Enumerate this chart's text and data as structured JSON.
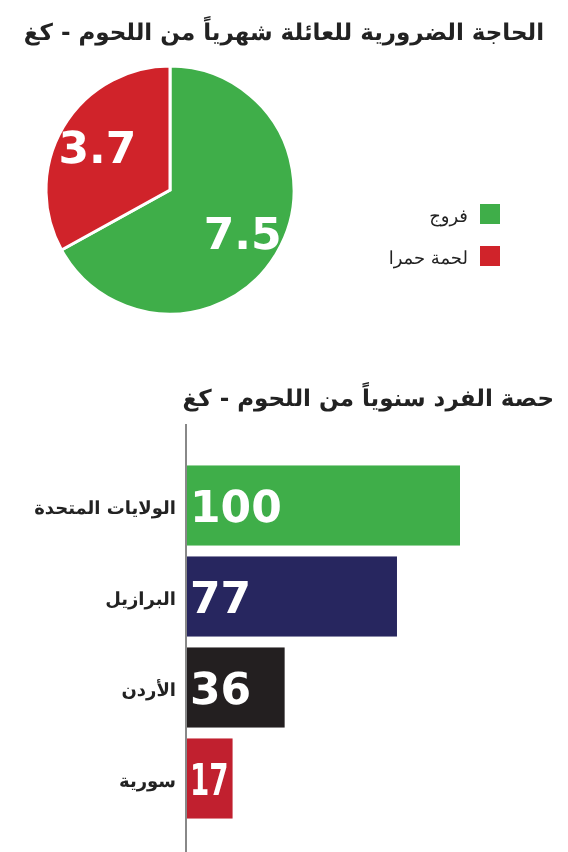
{
  "chart_data": [
    {
      "type": "pie",
      "title": "الحاجة الضرورية للعائلة شهرياً من اللحوم - كغ",
      "categories": [
        "فروج",
        "لحمة حمرا"
      ],
      "values": [
        7.5,
        3.7
      ],
      "colors": [
        "#3fae49",
        "#d0232a"
      ],
      "legend": "right",
      "data_labels": true
    },
    {
      "type": "bar",
      "orientation": "horizontal",
      "title": "حصة الفرد سنوياً من اللحوم - كغ",
      "categories": [
        "الولايات المتحدة",
        "البرازيل",
        "الأردن",
        "سورية"
      ],
      "values": [
        100,
        77,
        36,
        17
      ],
      "colors": [
        "#3fae49",
        "#27265f",
        "#231f20",
        "#c1202f"
      ],
      "xlim": [
        0,
        100
      ],
      "data_labels": true
    }
  ]
}
